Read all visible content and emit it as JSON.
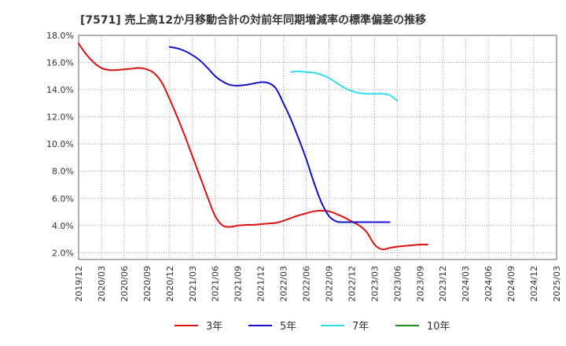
{
  "chart_data": {
    "type": "line",
    "title": "[7571]  売上高12か月移動合計の対前年同期増減率の標準偏差の推移",
    "xlabel": "",
    "ylabel": "",
    "ylim": [
      1.5,
      18.0
    ],
    "y_ticks": [
      2.0,
      4.0,
      6.0,
      8.0,
      10.0,
      12.0,
      14.0,
      16.0,
      18.0
    ],
    "y_tick_labels": [
      "2.0%",
      "4.0%",
      "6.0%",
      "8.0%",
      "10.0%",
      "12.0%",
      "14.0%",
      "16.0%",
      "18.0%"
    ],
    "x_tick_labels": [
      "2019/12",
      "2020/03",
      "2020/06",
      "2020/09",
      "2020/12",
      "2021/03",
      "2021/06",
      "2021/09",
      "2021/12",
      "2022/03",
      "2022/06",
      "2022/09",
      "2022/12",
      "2023/03",
      "2023/06",
      "2023/09",
      "2023/12",
      "2024/03",
      "2024/06",
      "2024/09",
      "2024/12",
      "2025/03"
    ],
    "grid": true,
    "legend_position": "bottom",
    "series": [
      {
        "name": "3年",
        "color": "#dd1111",
        "start_index": 0,
        "values": [
          17.4,
          16.6,
          16.0,
          15.6,
          15.45,
          15.45,
          15.5,
          15.55,
          15.6,
          15.5,
          15.2,
          14.5,
          13.3,
          12.0,
          10.6,
          9.1,
          7.6,
          6.1,
          4.7,
          4.0,
          3.9,
          4.0,
          4.05,
          4.05,
          4.1,
          4.15,
          4.2,
          4.35,
          4.55,
          4.75,
          4.9,
          5.05,
          5.1,
          5.05,
          4.85,
          4.6,
          4.3,
          4.0,
          3.5,
          2.6,
          2.25,
          2.35,
          2.45,
          2.5,
          2.55,
          2.6,
          2.6
        ]
      },
      {
        "name": "5年",
        "color": "#1111cc",
        "start_index": 12,
        "values": [
          17.15,
          17.05,
          16.85,
          16.55,
          16.15,
          15.6,
          15.0,
          14.6,
          14.35,
          14.3,
          14.35,
          14.45,
          14.55,
          14.5,
          14.1,
          13.0,
          11.8,
          10.4,
          8.9,
          7.2,
          5.7,
          4.7,
          4.3,
          4.25,
          4.25,
          4.25,
          4.25,
          4.25,
          4.25,
          4.25
        ]
      },
      {
        "name": "7年",
        "color": "#33ddee",
        "start_index": 28,
        "values": [
          15.3,
          15.35,
          15.3,
          15.25,
          15.1,
          14.85,
          14.5,
          14.15,
          13.9,
          13.75,
          13.7,
          13.7,
          13.7,
          13.6,
          13.2
        ]
      },
      {
        "name": "10年",
        "color": "#228822",
        "start_index": 0,
        "values": []
      }
    ]
  }
}
